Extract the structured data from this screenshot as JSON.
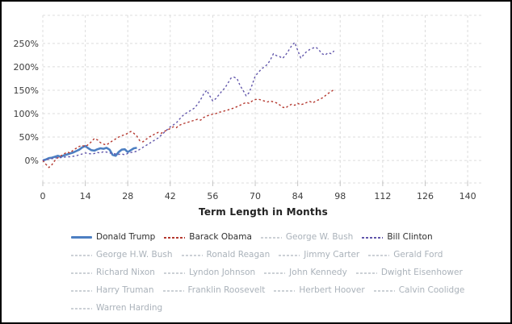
{
  "chart_data": {
    "type": "line",
    "title": "",
    "xlabel": "Term Length in Months",
    "ylabel": "",
    "x_ticks": [
      0,
      14,
      28,
      42,
      56,
      70,
      84,
      98,
      112,
      126,
      140
    ],
    "y_ticks": [
      {
        "value": 0,
        "label": "0%"
      },
      {
        "value": 50,
        "label": "50%"
      },
      {
        "value": 100,
        "label": "100%"
      },
      {
        "value": 150,
        "label": "150%"
      },
      {
        "value": 200,
        "label": "200%"
      },
      {
        "value": 250,
        "label": "250%"
      }
    ],
    "xlim": [
      0,
      145.3
    ],
    "ylim": [
      -48,
      310
    ],
    "grid": true,
    "grid_color": "#dcdcdc",
    "tick_text_color": "#3d3d3d",
    "legend_position": "bottom",
    "series": [
      {
        "name": "Donald Trump",
        "color": "#4d7fc2",
        "dash": "solid",
        "width": 2.6,
        "points": [
          [
            0,
            0
          ],
          [
            1,
            2
          ],
          [
            2,
            5
          ],
          [
            3,
            6
          ],
          [
            4,
            8
          ],
          [
            5,
            10
          ],
          [
            6,
            8
          ],
          [
            7,
            11
          ],
          [
            8,
            13
          ],
          [
            9,
            15
          ],
          [
            10,
            17
          ],
          [
            11,
            20
          ],
          [
            12,
            23
          ],
          [
            13,
            28
          ],
          [
            14,
            31
          ],
          [
            15,
            26
          ],
          [
            16,
            22
          ],
          [
            17,
            21
          ],
          [
            18,
            24
          ],
          [
            19,
            26
          ],
          [
            20,
            25
          ],
          [
            21,
            27
          ],
          [
            22,
            23
          ],
          [
            23,
            12
          ],
          [
            24,
            10
          ],
          [
            25,
            18
          ],
          [
            26,
            23
          ],
          [
            27,
            24
          ],
          [
            28,
            18
          ],
          [
            29,
            22
          ],
          [
            30,
            26
          ],
          [
            31,
            27
          ]
        ]
      },
      {
        "name": "Barack Obama",
        "color": "#b4382f",
        "dash": "dashed",
        "width": 1.4,
        "points": [
          [
            0,
            0
          ],
          [
            1,
            -8
          ],
          [
            2,
            -15
          ],
          [
            3,
            -9
          ],
          [
            4,
            0
          ],
          [
            5,
            6
          ],
          [
            6,
            10
          ],
          [
            7,
            14
          ],
          [
            8,
            18
          ],
          [
            9,
            16
          ],
          [
            10,
            22
          ],
          [
            11,
            26
          ],
          [
            12,
            30
          ],
          [
            13,
            32
          ],
          [
            14,
            30
          ],
          [
            15,
            34
          ],
          [
            16,
            40
          ],
          [
            17,
            47
          ],
          [
            18,
            44
          ],
          [
            19,
            38
          ],
          [
            20,
            35
          ],
          [
            21,
            33
          ],
          [
            22,
            38
          ],
          [
            23,
            42
          ],
          [
            24,
            46
          ],
          [
            25,
            50
          ],
          [
            26,
            53
          ],
          [
            27,
            55
          ],
          [
            28,
            58
          ],
          [
            29,
            62
          ],
          [
            30,
            58
          ],
          [
            31,
            52
          ],
          [
            32,
            42
          ],
          [
            33,
            40
          ],
          [
            34,
            45
          ],
          [
            35,
            50
          ],
          [
            36,
            53
          ],
          [
            37,
            57
          ],
          [
            38,
            60
          ],
          [
            39,
            58
          ],
          [
            40,
            62
          ],
          [
            41,
            65
          ],
          [
            42,
            68
          ],
          [
            43,
            72
          ],
          [
            44,
            70
          ],
          [
            45,
            75
          ],
          [
            46,
            78
          ],
          [
            47,
            80
          ],
          [
            48,
            82
          ],
          [
            49,
            84
          ],
          [
            50,
            86
          ],
          [
            51,
            88
          ],
          [
            52,
            86
          ],
          [
            53,
            92
          ],
          [
            54,
            95
          ],
          [
            55,
            97
          ],
          [
            56,
            99
          ],
          [
            57,
            100
          ],
          [
            58,
            103
          ],
          [
            59,
            104
          ],
          [
            60,
            106
          ],
          [
            61,
            108
          ],
          [
            62,
            110
          ],
          [
            63,
            112
          ],
          [
            64,
            115
          ],
          [
            65,
            118
          ],
          [
            66,
            121
          ],
          [
            67,
            124
          ],
          [
            68,
            122
          ],
          [
            69,
            127
          ],
          [
            70,
            130
          ],
          [
            71,
            131
          ],
          [
            72,
            129
          ],
          [
            73,
            127
          ],
          [
            74,
            125
          ],
          [
            75,
            127
          ],
          [
            76,
            125
          ],
          [
            77,
            123
          ],
          [
            78,
            119
          ],
          [
            79,
            114
          ],
          [
            80,
            112
          ],
          [
            81,
            117
          ],
          [
            82,
            120
          ],
          [
            83,
            118
          ],
          [
            84,
            122
          ],
          [
            85,
            119
          ],
          [
            86,
            121
          ],
          [
            87,
            124
          ],
          [
            88,
            126
          ],
          [
            89,
            123
          ],
          [
            90,
            127
          ],
          [
            91,
            130
          ],
          [
            92,
            133
          ],
          [
            93,
            138
          ],
          [
            94,
            143
          ],
          [
            95,
            147
          ],
          [
            96,
            152
          ]
        ]
      },
      {
        "name": "Bill Clinton",
        "color": "#6257ab",
        "dash": "dashed",
        "width": 1.4,
        "points": [
          [
            0,
            0
          ],
          [
            1,
            1
          ],
          [
            2,
            3
          ],
          [
            3,
            4
          ],
          [
            4,
            5
          ],
          [
            5,
            6
          ],
          [
            6,
            6
          ],
          [
            7,
            7
          ],
          [
            8,
            8
          ],
          [
            9,
            8
          ],
          [
            10,
            9
          ],
          [
            11,
            10
          ],
          [
            12,
            12
          ],
          [
            13,
            14
          ],
          [
            14,
            16
          ],
          [
            15,
            15
          ],
          [
            16,
            14
          ],
          [
            17,
            15
          ],
          [
            18,
            17
          ],
          [
            19,
            16
          ],
          [
            20,
            19
          ],
          [
            21,
            18
          ],
          [
            22,
            16
          ],
          [
            23,
            15
          ],
          [
            24,
            14
          ],
          [
            25,
            13
          ],
          [
            26,
            14
          ],
          [
            27,
            12
          ],
          [
            28,
            15
          ],
          [
            29,
            17
          ],
          [
            30,
            18
          ],
          [
            31,
            20
          ],
          [
            32,
            24
          ],
          [
            33,
            28
          ],
          [
            34,
            32
          ],
          [
            35,
            36
          ],
          [
            36,
            40
          ],
          [
            37,
            44
          ],
          [
            38,
            48
          ],
          [
            39,
            54
          ],
          [
            40,
            60
          ],
          [
            41,
            66
          ],
          [
            42,
            72
          ],
          [
            43,
            76
          ],
          [
            44,
            80
          ],
          [
            45,
            88
          ],
          [
            46,
            95
          ],
          [
            47,
            100
          ],
          [
            48,
            104
          ],
          [
            49,
            108
          ],
          [
            50,
            112
          ],
          [
            51,
            120
          ],
          [
            52,
            130
          ],
          [
            53,
            142
          ],
          [
            54,
            150
          ],
          [
            55,
            138
          ],
          [
            56,
            127
          ],
          [
            57,
            132
          ],
          [
            58,
            140
          ],
          [
            59,
            148
          ],
          [
            60,
            155
          ],
          [
            61,
            165
          ],
          [
            62,
            176
          ],
          [
            63,
            178
          ],
          [
            64,
            175
          ],
          [
            65,
            160
          ],
          [
            66,
            150
          ],
          [
            67,
            138
          ],
          [
            68,
            145
          ],
          [
            69,
            162
          ],
          [
            70,
            180
          ],
          [
            71,
            188
          ],
          [
            72,
            195
          ],
          [
            73,
            200
          ],
          [
            74,
            205
          ],
          [
            75,
            215
          ],
          [
            76,
            228
          ],
          [
            77,
            224
          ],
          [
            78,
            222
          ],
          [
            79,
            218
          ],
          [
            80,
            225
          ],
          [
            81,
            235
          ],
          [
            82,
            245
          ],
          [
            83,
            252
          ],
          [
            84,
            235
          ],
          [
            85,
            219
          ],
          [
            86,
            226
          ],
          [
            87,
            233
          ],
          [
            88,
            237
          ],
          [
            89,
            240
          ],
          [
            90,
            242
          ],
          [
            91,
            236
          ],
          [
            92,
            228
          ],
          [
            93,
            225
          ],
          [
            94,
            230
          ],
          [
            95,
            228
          ],
          [
            96,
            234
          ]
        ]
      }
    ]
  },
  "legend": {
    "active_text_color": "#2e2e2e",
    "inactive_text_color": "#aab2ba",
    "inactive_swatch_color": "#ccd1d6",
    "rows": [
      [
        {
          "label": "Donald Trump",
          "active": true,
          "color": "#4d7fc2",
          "style": "solid"
        },
        {
          "label": "Barack Obama",
          "active": true,
          "color": "#b4382f",
          "style": "dashed"
        },
        {
          "label": "George W. Bush",
          "active": false,
          "color": "#ccd1d6",
          "style": "dashed"
        },
        {
          "label": "Bill Clinton",
          "active": true,
          "color": "#6257ab",
          "style": "dashed"
        }
      ],
      [
        {
          "label": "George H.W. Bush",
          "active": false,
          "color": "#ccd1d6",
          "style": "dashed"
        },
        {
          "label": "Ronald Reagan",
          "active": false,
          "color": "#ccd1d6",
          "style": "dashed"
        },
        {
          "label": "Jimmy Carter",
          "active": false,
          "color": "#ccd1d6",
          "style": "dashed"
        },
        {
          "label": "Gerald Ford",
          "active": false,
          "color": "#ccd1d6",
          "style": "dashed"
        }
      ],
      [
        {
          "label": "Richard Nixon",
          "active": false,
          "color": "#ccd1d6",
          "style": "dashed"
        },
        {
          "label": "Lyndon Johnson",
          "active": false,
          "color": "#ccd1d6",
          "style": "dashed"
        },
        {
          "label": "John Kennedy",
          "active": false,
          "color": "#ccd1d6",
          "style": "dashed"
        },
        {
          "label": "Dwight Eisenhower",
          "active": false,
          "color": "#ccd1d6",
          "style": "dashed"
        }
      ],
      [
        {
          "label": "Harry Truman",
          "active": false,
          "color": "#ccd1d6",
          "style": "dashed"
        },
        {
          "label": "Franklin Roosevelt",
          "active": false,
          "color": "#ccd1d6",
          "style": "dashed"
        },
        {
          "label": "Herbert Hoover",
          "active": false,
          "color": "#ccd1d6",
          "style": "dashed"
        },
        {
          "label": "Calvin Coolidge",
          "active": false,
          "color": "#ccd1d6",
          "style": "dashed"
        }
      ],
      [
        {
          "label": "Warren Harding",
          "active": false,
          "color": "#ccd1d6",
          "style": "dashed"
        }
      ]
    ]
  }
}
